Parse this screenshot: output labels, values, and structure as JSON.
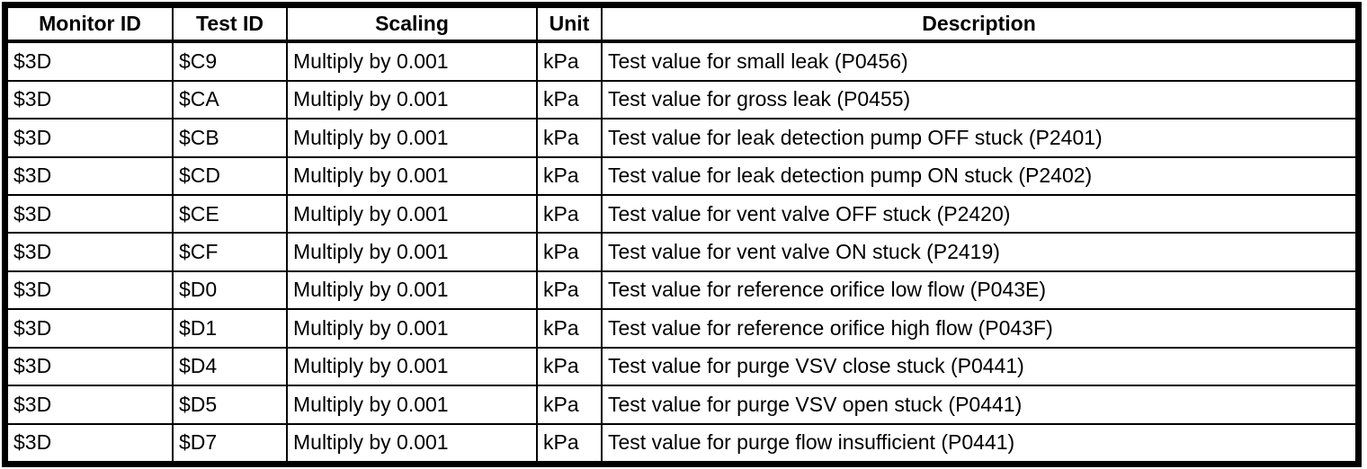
{
  "table": {
    "columns": [
      "Monitor ID",
      "Test ID",
      "Scaling",
      "Unit",
      "Description"
    ],
    "rows": [
      {
        "monitor_id": "$3D",
        "test_id": "$C9",
        "scaling": "Multiply by 0.001",
        "unit": "kPa",
        "description": "Test value for small leak (P0456)"
      },
      {
        "monitor_id": "$3D",
        "test_id": "$CA",
        "scaling": "Multiply by 0.001",
        "unit": "kPa",
        "description": "Test value for gross leak (P0455)"
      },
      {
        "monitor_id": "$3D",
        "test_id": "$CB",
        "scaling": "Multiply by 0.001",
        "unit": "kPa",
        "description": "Test value for leak detection pump OFF stuck (P2401)"
      },
      {
        "monitor_id": "$3D",
        "test_id": "$CD",
        "scaling": "Multiply by 0.001",
        "unit": "kPa",
        "description": "Test value for leak detection pump ON stuck (P2402)"
      },
      {
        "monitor_id": "$3D",
        "test_id": "$CE",
        "scaling": "Multiply by 0.001",
        "unit": "kPa",
        "description": "Test value for vent valve OFF stuck (P2420)"
      },
      {
        "monitor_id": "$3D",
        "test_id": "$CF",
        "scaling": "Multiply by 0.001",
        "unit": "kPa",
        "description": "Test value for vent valve ON stuck (P2419)"
      },
      {
        "monitor_id": "$3D",
        "test_id": "$D0",
        "scaling": "Multiply by 0.001",
        "unit": "kPa",
        "description": "Test value for reference orifice low flow (P043E)"
      },
      {
        "monitor_id": "$3D",
        "test_id": "$D1",
        "scaling": "Multiply by 0.001",
        "unit": "kPa",
        "description": "Test value for reference orifice high flow (P043F)"
      },
      {
        "monitor_id": "$3D",
        "test_id": "$D4",
        "scaling": "Multiply by 0.001",
        "unit": "kPa",
        "description": "Test value for purge VSV close stuck (P0441)"
      },
      {
        "monitor_id": "$3D",
        "test_id": "$D5",
        "scaling": "Multiply by 0.001",
        "unit": "kPa",
        "description": "Test value for purge VSV open stuck (P0441)"
      },
      {
        "monitor_id": "$3D",
        "test_id": "$D7",
        "scaling": "Multiply by 0.001",
        "unit": "kPa",
        "description": "Test value for purge flow insufficient (P0441)"
      }
    ]
  },
  "colors": {
    "border": "#000000",
    "background": "#ffffff",
    "text": "#000000"
  }
}
